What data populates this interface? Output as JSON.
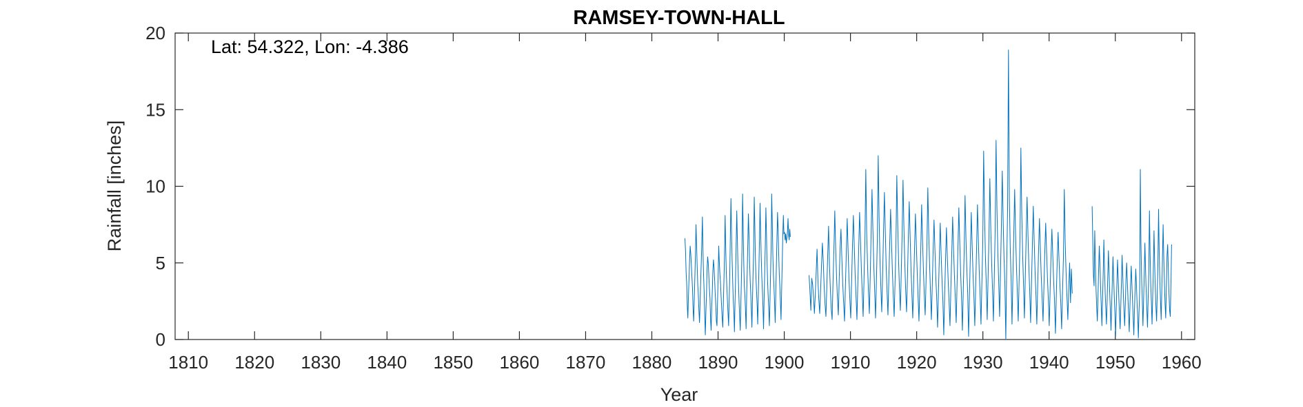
{
  "chart_data": {
    "type": "line",
    "title": "RAMSEY-TOWN-HALL",
    "xlabel": "Year",
    "ylabel": "Rainfall [inches]",
    "annotation": "Lat: 54.322, Lon: -4.386",
    "xlim": [
      1808,
      1962
    ],
    "ylim": [
      0,
      20
    ],
    "xticks": [
      1810,
      1820,
      1830,
      1840,
      1850,
      1860,
      1870,
      1880,
      1890,
      1900,
      1910,
      1920,
      1930,
      1940,
      1950,
      1960
    ],
    "yticks": [
      0,
      5,
      10,
      15,
      20
    ],
    "grid": false,
    "line_color": "#0072BD",
    "series": [
      {
        "segments": [
          {
            "start_year": 1885,
            "end_year": 1900.92,
            "monthly_values": [
              6.6,
              5.8,
              4.4,
              3.7,
              2.2,
              1.4,
              2.8,
              3.9,
              5.2,
              6.1,
              5.6,
              4.9,
              4.1,
              3.3,
              2.0,
              1.2,
              2.6,
              4.0,
              5.5,
              7.5,
              6.2,
              4.8,
              3.6,
              2.9,
              1.9,
              1.1,
              2.3,
              3.8,
              5.0,
              6.4,
              8.0,
              5.7,
              4.2,
              3.1,
              1.6,
              0.3,
              1.8,
              2.9,
              4.6,
              5.4,
              5.0,
              4.2,
              3.3,
              2.7,
              1.3,
              0.6,
              2.1,
              3.2,
              4.5,
              5.2,
              4.7,
              3.9,
              3.0,
              2.2,
              1.2,
              0.9,
              2.5,
              4.0,
              6.1,
              5.1,
              4.3,
              3.7,
              2.9,
              2.1,
              1.4,
              0.8,
              2.4,
              3.9,
              5.6,
              8.1,
              6.0,
              4.4,
              3.4,
              2.5,
              1.7,
              0.9,
              2.6,
              4.4,
              6.8,
              9.2,
              7.1,
              5.2,
              3.8,
              2.6,
              1.8,
              0.5,
              2.4,
              4.1,
              6.3,
              8.4,
              6.6,
              4.9,
              3.6,
              2.4,
              1.5,
              0.6,
              2.3,
              4.0,
              5.9,
              9.5,
              7.3,
              5.0,
              3.5,
              2.8,
              1.9,
              0.7,
              2.8,
              4.5,
              6.4,
              8.2,
              6.8,
              5.1,
              3.9,
              3.0,
              2.0,
              0.8,
              2.6,
              4.3,
              6.0,
              9.3,
              7.5,
              5.3,
              4.0,
              3.1,
              2.2,
              1.0,
              2.9,
              4.6,
              6.5,
              8.9,
              7.0,
              5.4,
              4.1,
              3.2,
              2.1,
              0.7,
              2.7,
              4.4,
              6.2,
              8.6,
              6.9,
              5.0,
              3.7,
              2.8,
              1.9,
              0.9,
              2.5,
              4.2,
              6.0,
              9.5,
              7.6,
              5.5,
              4.2,
              3.3,
              2.3,
              1.1,
              3.0,
              4.8,
              6.6,
              8.3,
              7.2,
              5.6,
              4.3,
              3.4,
              2.4,
              1.3,
              3.1,
              4.9,
              6.7,
              8.1,
              6.9,
              7.0,
              6.5,
              6.9,
              6.3,
              6.6,
              7.0,
              7.9,
              6.8,
              6.5,
              7.2,
              6.7
            ]
          },
          {
            "start_year": 1903.75,
            "end_year": 1943.5,
            "monthly_values": [
              4.2,
              3.1,
              1.9,
              4.0,
              3.6,
              2.8,
              1.7,
              2.9,
              4.4,
              5.9,
              3.8,
              2.6,
              1.7,
              3.2,
              4.8,
              6.3,
              5.1,
              3.5,
              2.3,
              1.5,
              3.4,
              5.5,
              7.4,
              4.9,
              3.3,
              2.0,
              1.3,
              3.7,
              5.8,
              8.4,
              6.0,
              4.1,
              2.7,
              1.6,
              3.9,
              6.0,
              7.2,
              5.3,
              3.6,
              2.4,
              1.2,
              3.5,
              5.6,
              7.9,
              5.9,
              4.0,
              2.6,
              1.4,
              3.8,
              6.2,
              8.1,
              6.1,
              4.2,
              2.8,
              1.3,
              3.6,
              5.9,
              8.3,
              6.5,
              4.6,
              3.0,
              1.5,
              3.9,
              6.4,
              11.1,
              7.0,
              4.8,
              3.1,
              1.7,
              4.1,
              6.8,
              9.8,
              7.2,
              4.9,
              3.2,
              1.4,
              3.8,
              6.5,
              12.0,
              8.0,
              5.2,
              3.4,
              1.8,
              4.2,
              7.0,
              9.6,
              7.1,
              4.8,
              3.1,
              1.6,
              3.9,
              6.3,
              8.5,
              6.4,
              4.5,
              2.9,
              1.5,
              3.7,
              6.1,
              10.7,
              7.6,
              5.1,
              3.3,
              1.9,
              4.3,
              6.9,
              10.4,
              7.4,
              5.0,
              3.2,
              1.8,
              4.0,
              6.6,
              9.0,
              6.8,
              4.7,
              3.0,
              1.4,
              3.6,
              5.9,
              8.2,
              6.3,
              4.4,
              2.8,
              1.2,
              3.4,
              5.7,
              8.8,
              6.5,
              4.6,
              2.9,
              1.6,
              3.8,
              6.2,
              9.9,
              7.0,
              4.9,
              3.1,
              1.3,
              3.5,
              5.8,
              7.8,
              5.9,
              4.1,
              2.7,
              0.8,
              3.1,
              5.4,
              7.6,
              5.6,
              3.9,
              2.5,
              0.3,
              2.9,
              5.2,
              7.3,
              5.4,
              3.8,
              2.4,
              0.9,
              3.3,
              5.6,
              8.0,
              6.0,
              4.2,
              2.7,
              1.1,
              3.6,
              6.0,
              8.6,
              6.4,
              4.4,
              2.8,
              0.6,
              3.2,
              5.7,
              9.4,
              6.7,
              4.6,
              3.0,
              0.2,
              3.0,
              5.5,
              8.3,
              6.2,
              4.3,
              2.8,
              0.9,
              3.4,
              5.9,
              8.8,
              6.6,
              4.5,
              2.9,
              1.0,
              3.7,
              6.3,
              12.3,
              8.1,
              5.4,
              3.5,
              1.3,
              4.0,
              6.8,
              10.5,
              7.4,
              5.0,
              3.3,
              1.2,
              4.1,
              7.1,
              13.0,
              8.6,
              5.7,
              3.7,
              1.5,
              4.4,
              7.4,
              11.0,
              7.8,
              5.3,
              3.5,
              0.0,
              4.8,
              8.5,
              18.9,
              9.2,
              6.0,
              3.9,
              1.0,
              4.0,
              6.9,
              9.8,
              7.0,
              4.8,
              3.1,
              1.2,
              3.8,
              6.5,
              12.5,
              8.3,
              5.5,
              3.6,
              1.4,
              4.1,
              6.8,
              9.3,
              6.9,
              4.8,
              3.1,
              1.1,
              3.7,
              6.2,
              8.7,
              6.5,
              4.5,
              2.9,
              1.0,
              3.5,
              5.9,
              7.9,
              5.9,
              4.1,
              2.7,
              1.2,
              3.4,
              5.7,
              7.6,
              5.8,
              4.0,
              2.6,
              0.9,
              3.2,
              5.4,
              7.2,
              5.5,
              3.8,
              2.5,
              0.4,
              2.9,
              5.1,
              7.0,
              5.3,
              3.7,
              2.4,
              0.7,
              3.1,
              5.3,
              9.8,
              6.4,
              4.4,
              2.8,
              1.3,
              3.3,
              5.0,
              2.4,
              4.6,
              3.0
            ]
          },
          {
            "start_year": 1946.5,
            "end_year": 1958.5,
            "monthly_values": [
              8.7,
              6.4,
              4.2,
              3.5,
              7.1,
              5.0,
              3.3,
              2.1,
              1.2,
              2.8,
              4.6,
              6.1,
              4.9,
              3.4,
              2.2,
              0.9,
              2.6,
              4.3,
              6.5,
              4.7,
              3.1,
              2.0,
              1.0,
              2.5,
              4.1,
              5.8,
              4.4,
              3.0,
              1.9,
              0.6,
              2.3,
              3.8,
              5.4,
              4.1,
              2.8,
              1.7,
              0.2,
              2.0,
              3.6,
              5.2,
              4.0,
              2.7,
              1.7,
              0.7,
              2.2,
              3.7,
              5.5,
              4.2,
              2.9,
              1.8,
              0.9,
              2.4,
              3.9,
              5.0,
              3.9,
              2.7,
              1.6,
              0.5,
              2.1,
              3.5,
              4.8,
              3.7,
              2.5,
              1.5,
              0.3,
              1.9,
              3.3,
              4.6,
              3.6,
              2.4,
              1.5,
              0.1,
              1.8,
              3.2,
              11.1,
              6.2,
              4.0,
              2.6,
              0.9,
              2.5,
              4.2,
              6.3,
              4.6,
              3.1,
              2.0,
              0.8,
              2.6,
              4.4,
              8.4,
              5.6,
              3.7,
              2.4,
              1.0,
              2.8,
              4.7,
              7.1,
              5.0,
              3.3,
              2.1,
              1.2,
              3.0,
              5.0,
              8.5,
              5.7,
              3.8,
              2.5,
              1.3,
              3.2,
              5.3,
              7.5,
              5.4,
              3.6,
              2.3,
              1.4,
              3.4,
              5.5,
              6.2,
              4.6,
              3.0,
              1.9,
              1.5,
              3.6,
              6.2
            ]
          }
        ]
      }
    ]
  }
}
